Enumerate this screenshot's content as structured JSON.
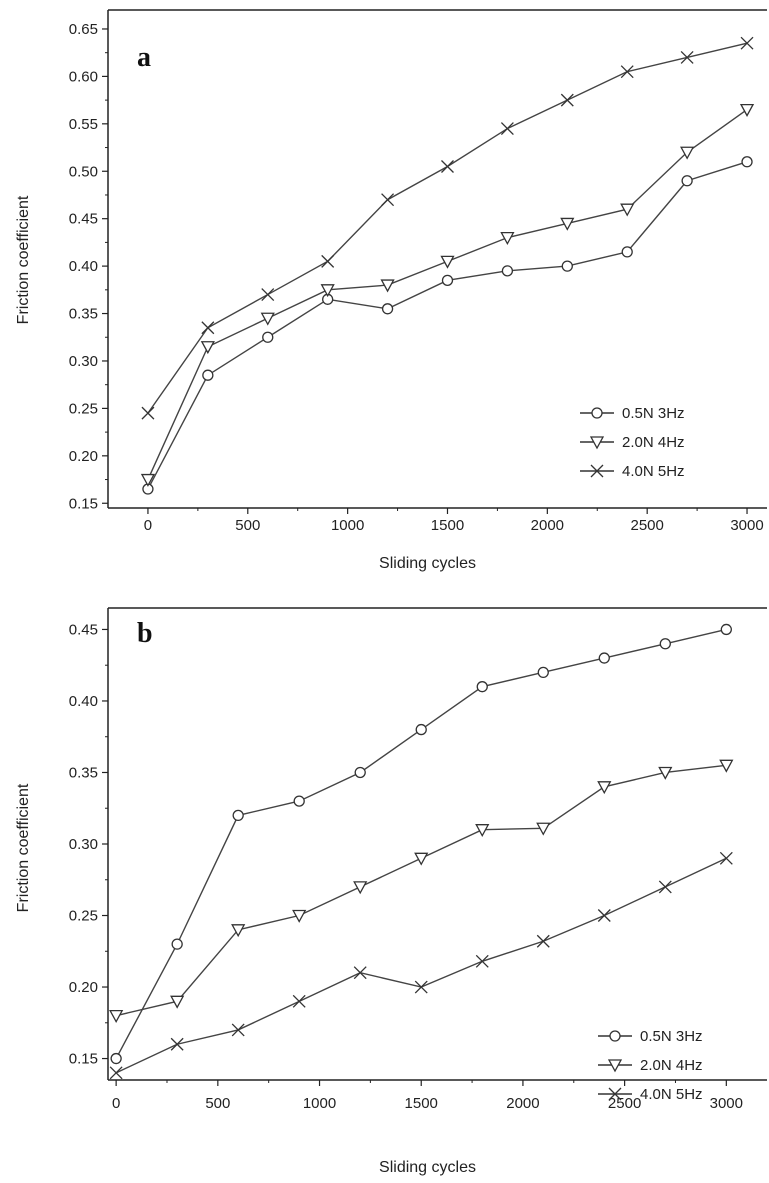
{
  "chart_data": [
    {
      "type": "line",
      "panel_label": "a",
      "xlabel": "Sliding cycles",
      "ylabel": "Friction coefficient",
      "xlim": [
        -200,
        3100
      ],
      "ylim": [
        0.145,
        0.67
      ],
      "xticks": [
        0,
        500,
        1000,
        1500,
        2000,
        2500,
        3000
      ],
      "yticks": [
        0.15,
        0.2,
        0.25,
        0.3,
        0.35,
        0.4,
        0.45,
        0.5,
        0.55,
        0.6,
        0.65
      ],
      "ytick_labels": [
        "0.15",
        "0.20",
        "0.25",
        "0.30",
        "0.35",
        "0.40",
        "0.45",
        "0.50",
        "0.55",
        "0.60",
        "0.65"
      ],
      "x": [
        0,
        300,
        600,
        900,
        1200,
        1500,
        1800,
        2100,
        2400,
        2700,
        3000
      ],
      "legend_position": "bottom-right",
      "grid": false,
      "series": [
        {
          "name": "0.5N 3Hz",
          "marker": "circle",
          "line": true,
          "values": [
            0.165,
            0.285,
            0.325,
            0.365,
            0.355,
            0.385,
            0.395,
            0.4,
            0.415,
            0.49,
            0.51
          ]
        },
        {
          "name": "2.0N 4Hz",
          "marker": "triangle-down",
          "line": true,
          "values": [
            0.175,
            0.315,
            0.345,
            0.375,
            0.38,
            0.405,
            0.43,
            0.445,
            0.46,
            0.52,
            0.565
          ]
        },
        {
          "name": "4.0N 5Hz",
          "marker": "x",
          "line": true,
          "values": [
            0.245,
            0.335,
            0.37,
            0.405,
            0.47,
            0.505,
            0.545,
            0.575,
            0.605,
            0.62,
            0.635
          ]
        }
      ]
    },
    {
      "type": "line",
      "panel_label": "b",
      "xlabel": "Sliding cycles",
      "ylabel": "Friction coefficient",
      "xlim": [
        -40,
        3200
      ],
      "ylim": [
        0.135,
        0.465
      ],
      "xticks": [
        0,
        500,
        1000,
        1500,
        2000,
        2500,
        3000
      ],
      "yticks": [
        0.15,
        0.2,
        0.25,
        0.3,
        0.35,
        0.4,
        0.45
      ],
      "ytick_labels": [
        "0.15",
        "0.20",
        "0.25",
        "0.30",
        "0.35",
        "0.40",
        "0.45"
      ],
      "x": [
        0,
        300,
        600,
        900,
        1200,
        1500,
        1800,
        2100,
        2400,
        2700,
        3000
      ],
      "legend_position": "bottom-right",
      "grid": false,
      "series": [
        {
          "name": "0.5N 3Hz",
          "marker": "circle",
          "line": true,
          "values": [
            0.15,
            0.23,
            0.32,
            0.33,
            0.35,
            0.38,
            0.41,
            0.42,
            0.43,
            0.44,
            0.45
          ]
        },
        {
          "name": "2.0N 4Hz",
          "marker": "triangle-down",
          "line": true,
          "values": [
            0.18,
            0.19,
            0.24,
            0.25,
            0.27,
            0.29,
            0.31,
            0.311,
            0.34,
            0.35,
            0.355
          ]
        },
        {
          "name": "4.0N 5Hz",
          "marker": "x",
          "line": true,
          "values": [
            0.14,
            0.16,
            0.17,
            0.19,
            0.21,
            0.2,
            0.218,
            0.232,
            0.25,
            0.27,
            0.29
          ]
        }
      ]
    }
  ]
}
